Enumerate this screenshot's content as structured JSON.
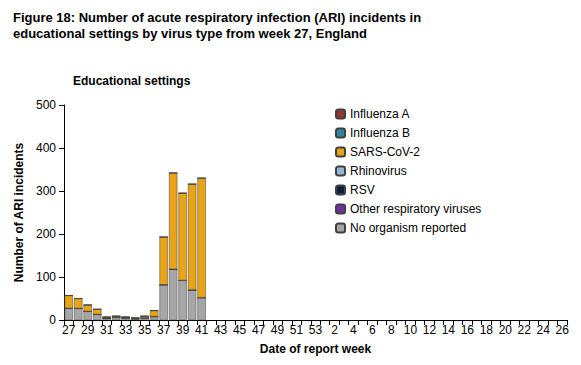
{
  "chart_data": {
    "type": "bar",
    "title": "Figure 18: Number of acute respiratory infection (ARI) incidents in educational settings by virus type from week 27, England",
    "subtitle": "Educational settings",
    "x_label": "Date of report week",
    "y_label": "Number of ARI incidents",
    "categories": [
      "27",
      null,
      "29",
      null,
      "31",
      null,
      "33",
      null,
      "35",
      null,
      "37",
      null,
      "39",
      null,
      "41",
      null,
      "43",
      null,
      "45",
      null,
      "47",
      null,
      "49",
      null,
      "51",
      null,
      "53",
      null,
      "2",
      null,
      "4",
      null,
      "6",
      null,
      "8",
      null,
      "10",
      null,
      "12",
      null,
      "14",
      null,
      "16",
      null,
      "18",
      null,
      "20",
      null,
      "22",
      null,
      "24",
      null,
      "26"
    ],
    "series": [
      {
        "name": "Influenza A",
        "color": "#953735",
        "values": [
          0,
          0,
          0,
          0,
          0,
          0,
          0,
          0,
          0,
          0,
          0,
          0,
          0,
          0,
          0,
          null,
          null,
          null,
          null,
          null,
          null,
          null,
          null,
          null,
          null,
          null,
          null,
          null,
          null,
          null,
          null,
          null,
          null,
          null,
          null,
          null,
          null,
          null,
          null,
          null,
          null,
          null,
          null,
          null,
          null,
          null,
          null,
          null,
          null,
          null,
          null,
          null,
          null
        ]
      },
      {
        "name": "Influenza B",
        "color": "#31859c",
        "values": [
          0,
          0,
          0,
          0,
          0,
          0,
          0,
          0,
          0,
          0,
          0,
          0,
          0,
          0,
          0,
          null,
          null,
          null,
          null,
          null,
          null,
          null,
          null,
          null,
          null,
          null,
          null,
          null,
          null,
          null,
          null,
          null,
          null,
          null,
          null,
          null,
          null,
          null,
          null,
          null,
          null,
          null,
          null,
          null,
          null,
          null,
          null,
          null,
          null,
          null,
          null,
          null,
          null
        ]
      },
      {
        "name": "SARS-CoV-2",
        "color": "#e8a317",
        "values": [
          30,
          23,
          15,
          12,
          3,
          3,
          2,
          2,
          4,
          14,
          111,
          224,
          203,
          246,
          278,
          null,
          null,
          null,
          null,
          null,
          null,
          null,
          null,
          null,
          null,
          null,
          null,
          null,
          null,
          null,
          null,
          null,
          null,
          null,
          null,
          null,
          null,
          null,
          null,
          null,
          null,
          null,
          null,
          null,
          null,
          null,
          null,
          null,
          null,
          null,
          null,
          null,
          null
        ]
      },
      {
        "name": "Rhinovirus",
        "color": "#95b3d7",
        "values": [
          0,
          0,
          0,
          0,
          0,
          0,
          0,
          0,
          0,
          0,
          0,
          0,
          0,
          0,
          0,
          null,
          null,
          null,
          null,
          null,
          null,
          null,
          null,
          null,
          null,
          null,
          null,
          null,
          null,
          null,
          null,
          null,
          null,
          null,
          null,
          null,
          null,
          null,
          null,
          null,
          null,
          null,
          null,
          null,
          null,
          null,
          null,
          null,
          null,
          null,
          null,
          null,
          null
        ]
      },
      {
        "name": "RSV",
        "color": "#0f1e3c",
        "values": [
          0,
          0,
          0,
          0,
          0,
          0,
          0,
          0,
          0,
          0,
          0,
          0,
          0,
          0,
          0,
          null,
          null,
          null,
          null,
          null,
          null,
          null,
          null,
          null,
          null,
          null,
          null,
          null,
          null,
          null,
          null,
          null,
          null,
          null,
          null,
          null,
          null,
          null,
          null,
          null,
          null,
          null,
          null,
          null,
          null,
          null,
          null,
          null,
          null,
          null,
          null,
          null,
          null
        ]
      },
      {
        "name": "Other respiratory viruses",
        "color": "#7030a0",
        "values": [
          0,
          0,
          0,
          0,
          0,
          0,
          0,
          0,
          0,
          0,
          0,
          0,
          0,
          0,
          0,
          null,
          null,
          null,
          null,
          null,
          null,
          null,
          null,
          null,
          null,
          null,
          null,
          null,
          null,
          null,
          null,
          null,
          null,
          null,
          null,
          null,
          null,
          null,
          null,
          null,
          null,
          null,
          null,
          null,
          null,
          null,
          null,
          null,
          null,
          null,
          null,
          null,
          null
        ]
      },
      {
        "name": "No organism reported",
        "color": "#a6a6a6",
        "values": [
          27,
          27,
          20,
          13,
          4,
          6,
          5,
          3,
          5,
          8,
          82,
          118,
          92,
          70,
          52,
          null,
          null,
          null,
          null,
          null,
          null,
          null,
          null,
          null,
          null,
          null,
          null,
          null,
          null,
          null,
          null,
          null,
          null,
          null,
          null,
          null,
          null,
          null,
          null,
          null,
          null,
          null,
          null,
          null,
          null,
          null,
          null,
          null,
          null,
          null,
          null,
          null,
          null
        ]
      }
    ],
    "stacked": true,
    "ylim": [
      0,
      500
    ],
    "yticks": [
      0,
      100,
      200,
      300,
      400,
      500
    ],
    "grid": false,
    "legend": "right"
  }
}
